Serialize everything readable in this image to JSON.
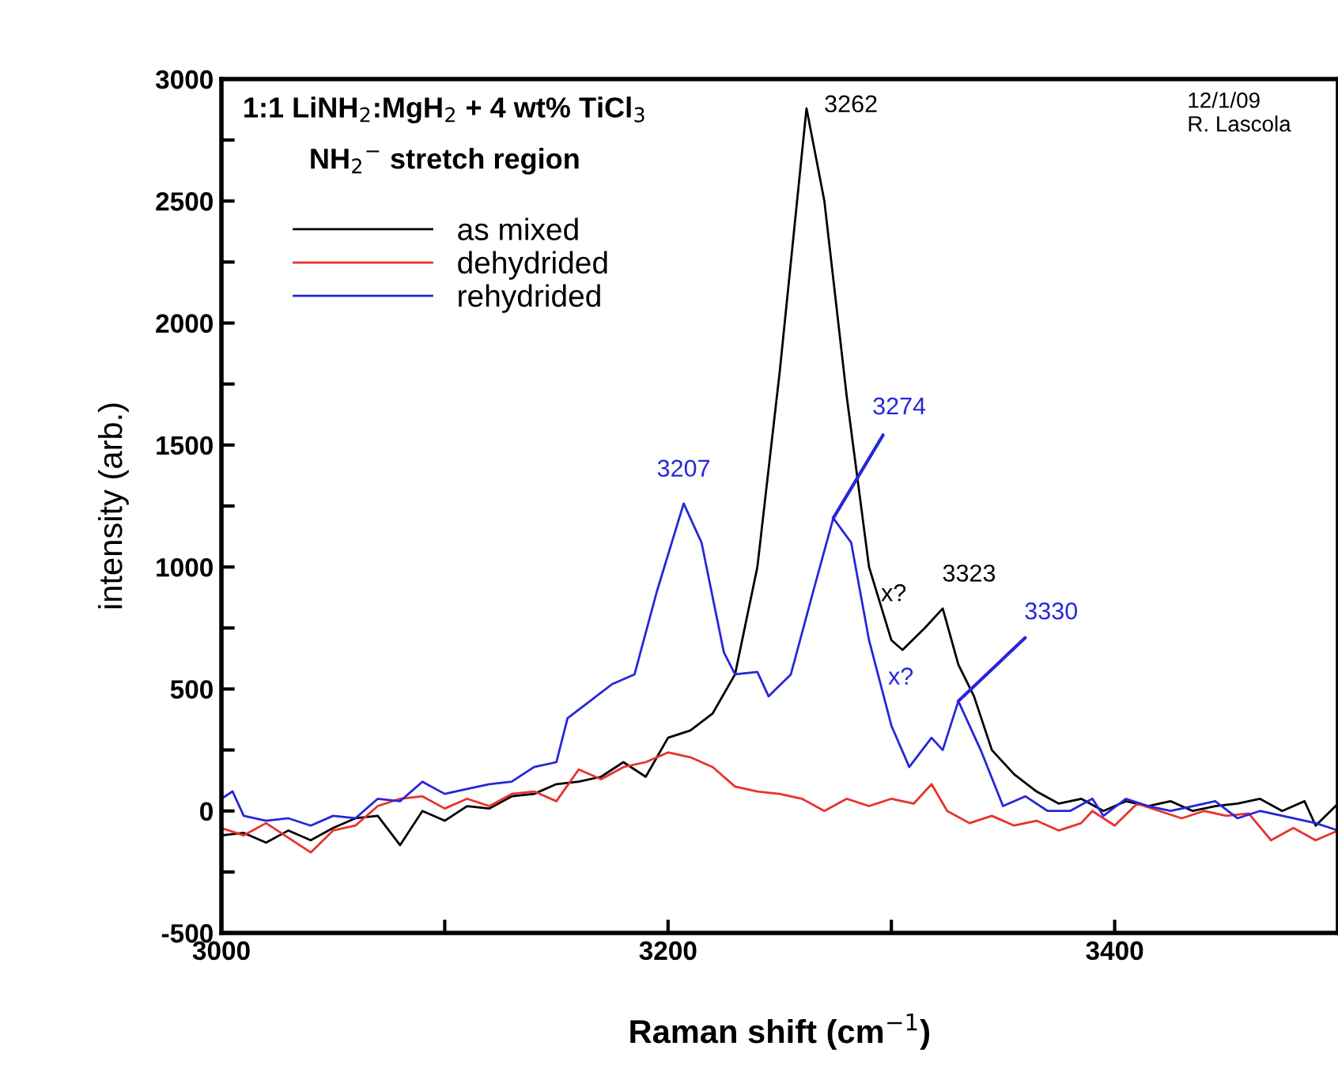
{
  "chart_data": {
    "type": "line",
    "title": "1:1 LiNH$_{2}$:MgH$_{2}$ + 4 wt% TiCl$_{3}$",
    "subtitle": "NH$_{2}$$^{−}$ stretch region",
    "xlabel": "Raman shift (cm$^{−1}$)",
    "ylabel": "intensity (arb.)",
    "xlim": [
      3000,
      3500
    ],
    "ylim": [
      -500,
      3000
    ],
    "xticks": [
      3000,
      {
        "value": 3100,
        "label": null
      },
      3200,
      {
        "value": 3300,
        "label": null
      },
      3400,
      {
        "value": 3500,
        "label": null
      }
    ],
    "yticks": [
      -500,
      {
        "value": -250,
        "label": null
      },
      0,
      {
        "value": 250,
        "label": null
      },
      500,
      {
        "value": 750,
        "label": null
      },
      1000,
      {
        "value": 1250,
        "label": null
      },
      1500,
      {
        "value": 1750,
        "label": null
      },
      2000,
      {
        "value": 2250,
        "label": null
      },
      2500,
      {
        "value": 2750,
        "label": null
      },
      3000
    ],
    "grid": false,
    "legend": "top left",
    "marker": "none",
    "line_style": "solid",
    "series": [
      {
        "name": "as mixed",
        "color": "#000000",
        "x": [
          3000,
          3010,
          3020,
          3030,
          3040,
          3050,
          3060,
          3070,
          3080,
          3090,
          3100,
          3110,
          3120,
          3130,
          3140,
          3150,
          3160,
          3170,
          3180,
          3190,
          3200,
          3210,
          3220,
          3230,
          3240,
          3250,
          3262,
          3270,
          3280,
          3290,
          3300,
          3305,
          3315,
          3323,
          3330,
          3337,
          3345,
          3355,
          3365,
          3375,
          3385,
          3395,
          3405,
          3415,
          3425,
          3435,
          3445,
          3455,
          3465,
          3475,
          3485,
          3490,
          3500
        ],
        "values": [
          -100,
          -90,
          -130,
          -80,
          -120,
          -70,
          -30,
          -20,
          -140,
          0,
          -40,
          20,
          10,
          60,
          70,
          110,
          120,
          140,
          200,
          140,
          300,
          330,
          400,
          560,
          1000,
          1800,
          2880,
          2500,
          1700,
          1000,
          700,
          660,
          750,
          830,
          600,
          470,
          250,
          150,
          80,
          30,
          50,
          0,
          40,
          20,
          40,
          0,
          20,
          30,
          50,
          0,
          40,
          -60,
          30
        ]
      },
      {
        "name": "dehydrided",
        "color": "#e8322e",
        "x": [
          3000,
          3010,
          3020,
          3030,
          3040,
          3050,
          3060,
          3070,
          3080,
          3090,
          3100,
          3110,
          3120,
          3130,
          3140,
          3150,
          3160,
          3170,
          3180,
          3190,
          3200,
          3210,
          3220,
          3230,
          3240,
          3250,
          3260,
          3270,
          3280,
          3290,
          3300,
          3310,
          3318,
          3325,
          3335,
          3345,
          3355,
          3365,
          3375,
          3385,
          3390,
          3400,
          3410,
          3420,
          3430,
          3440,
          3450,
          3460,
          3470,
          3480,
          3490,
          3500
        ],
        "values": [
          -70,
          -100,
          -50,
          -110,
          -170,
          -80,
          -60,
          20,
          50,
          60,
          10,
          50,
          20,
          70,
          80,
          40,
          170,
          130,
          180,
          200,
          240,
          220,
          180,
          100,
          80,
          70,
          50,
          0,
          50,
          20,
          50,
          30,
          110,
          0,
          -50,
          -20,
          -60,
          -40,
          -80,
          -50,
          0,
          -60,
          30,
          0,
          -30,
          0,
          -20,
          -10,
          -120,
          -70,
          -120,
          -80
        ]
      },
      {
        "name": "rehydrided",
        "color": "#2626d9",
        "x": [
          3000,
          3005,
          3010,
          3020,
          3030,
          3040,
          3050,
          3060,
          3070,
          3080,
          3090,
          3100,
          3110,
          3120,
          3130,
          3140,
          3150,
          3155,
          3165,
          3175,
          3185,
          3195,
          3207,
          3215,
          3225,
          3230,
          3240,
          3245,
          3255,
          3265,
          3274,
          3282,
          3290,
          3300,
          3308,
          3318,
          3323,
          3330,
          3340,
          3350,
          3360,
          3370,
          3380,
          3390,
          3395,
          3405,
          3415,
          3425,
          3435,
          3445,
          3455,
          3465,
          3480,
          3490,
          3500
        ],
        "values": [
          50,
          80,
          -20,
          -40,
          -30,
          -60,
          -20,
          -30,
          50,
          40,
          120,
          70,
          90,
          110,
          120,
          180,
          200,
          380,
          450,
          520,
          560,
          900,
          1260,
          1100,
          650,
          560,
          570,
          470,
          560,
          900,
          1200,
          1100,
          700,
          350,
          180,
          300,
          250,
          450,
          250,
          20,
          60,
          0,
          0,
          50,
          -20,
          50,
          20,
          0,
          20,
          40,
          -30,
          0,
          -30,
          -50,
          -80
        ]
      }
    ],
    "annotations": [
      {
        "text": "3262",
        "x": 3262,
        "y": 2880
      },
      {
        "text": "3207",
        "x": 3207,
        "y": 1260
      },
      {
        "text": "3274",
        "x": 3274,
        "y": 1200
      },
      {
        "text": "3323",
        "x": 3323,
        "y": 830
      },
      {
        "text": "x?",
        "x": 3305,
        "y": 660
      },
      {
        "text": "3330",
        "x": 3330,
        "y": 450
      },
      {
        "text": "x?",
        "x": 3318,
        "y": 300
      },
      "12/1/09\nR. Lascola"
    ]
  }
}
